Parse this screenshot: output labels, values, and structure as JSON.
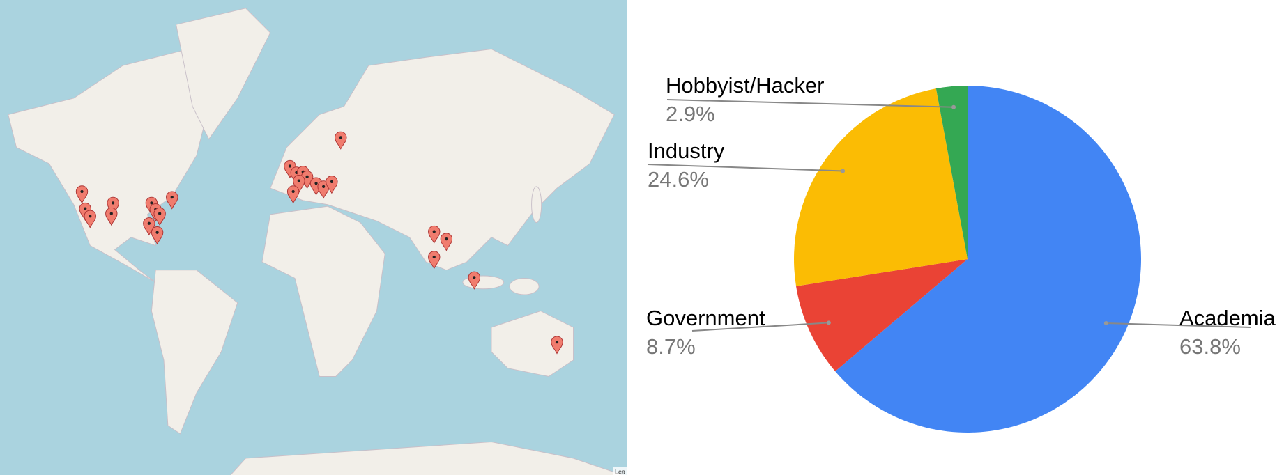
{
  "map": {
    "attribution": "Lea"
  },
  "chart_data": {
    "type": "pie",
    "categories": [
      "Academia",
      "Government",
      "Industry",
      "Hobbyist/Hacker"
    ],
    "values": [
      63.8,
      8.7,
      24.6,
      2.9
    ],
    "value_labels": [
      "63.8%",
      "8.7%",
      "24.6%",
      "2.9%"
    ],
    "colors": [
      "#4285f4",
      "#ea4335",
      "#fbbc04",
      "#34a853"
    ]
  }
}
